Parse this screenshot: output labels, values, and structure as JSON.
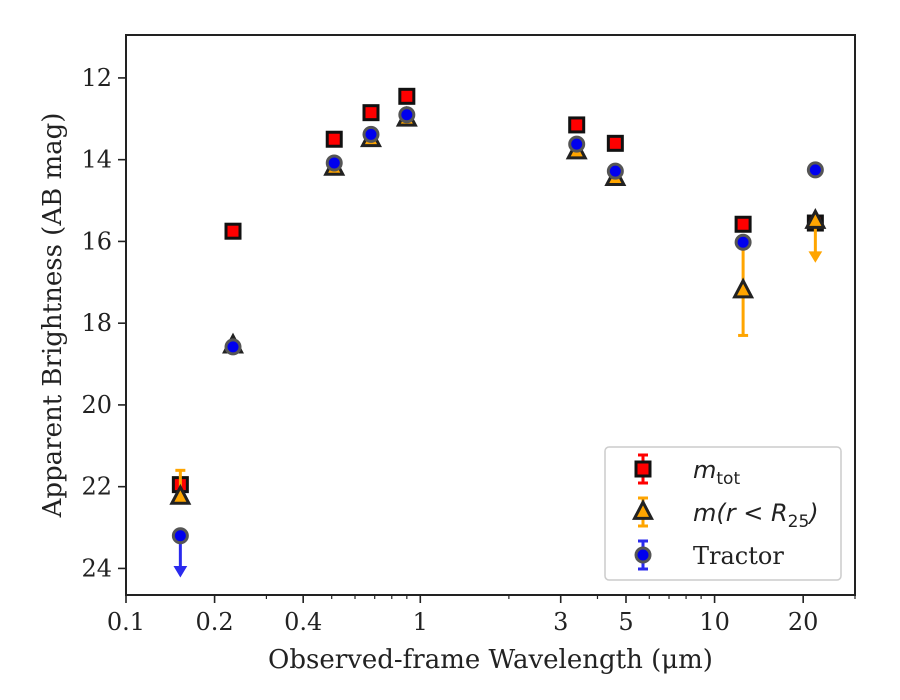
{
  "chart_data": {
    "type": "scatter",
    "title": "",
    "xlabel": "Observed-frame Wavelength (μm)",
    "ylabel": "Apparent Brightness (AB mag)",
    "x_scale": "log",
    "xlim": [
      0.1,
      30
    ],
    "ylim": [
      24.65,
      10.95
    ],
    "y_inverted": true,
    "x_ticks": [
      {
        "value": 0.1,
        "label": "0.1"
      },
      {
        "value": 0.2,
        "label": "0.2"
      },
      {
        "value": 0.4,
        "label": "0.4"
      },
      {
        "value": 1,
        "label": "1"
      },
      {
        "value": 3,
        "label": "3"
      },
      {
        "value": 5,
        "label": "5"
      },
      {
        "value": 10,
        "label": "10"
      },
      {
        "value": 20,
        "label": "20"
      }
    ],
    "y_ticks": [
      {
        "value": 12,
        "label": "12"
      },
      {
        "value": 14,
        "label": "14"
      },
      {
        "value": 16,
        "label": "16"
      },
      {
        "value": 18,
        "label": "18"
      },
      {
        "value": 20,
        "label": "20"
      },
      {
        "value": 22,
        "label": "22"
      },
      {
        "value": 24,
        "label": "24"
      }
    ],
    "legend_position": "lower-right",
    "grid": false,
    "series": [
      {
        "name": "m_tot",
        "legend_main": "m",
        "legend_sub": "tot",
        "legend_rest": "",
        "marker": "square",
        "fill": "#ff0000",
        "edge": "#111111",
        "errcolor": "#ff0000",
        "points": [
          {
            "x": 0.153,
            "y": 21.95,
            "err": 0.12
          },
          {
            "x": 0.231,
            "y": 15.75,
            "err": 0.05
          },
          {
            "x": 0.51,
            "y": 13.5,
            "err": 0.05
          },
          {
            "x": 0.68,
            "y": 12.85,
            "err": 0.05
          },
          {
            "x": 0.9,
            "y": 12.45,
            "err": 0.05
          },
          {
            "x": 3.4,
            "y": 13.15,
            "err": 0.05
          },
          {
            "x": 4.6,
            "y": 13.6,
            "err": 0.05
          },
          {
            "x": 12.5,
            "y": 15.58,
            "err": 0.08
          },
          {
            "x": 22,
            "y": 15.55,
            "err": 0.08
          }
        ]
      },
      {
        "name": "m(r<R25)",
        "legend_main": "m(r < R",
        "legend_sub": "25",
        "legend_rest": ")",
        "marker": "triangle",
        "fill": "#ffa500",
        "edge": "#222222",
        "errcolor": "#ffa500",
        "points": [
          {
            "x": 0.153,
            "y": 22.25,
            "err_low": 0.65,
            "err_high": 0.0
          },
          {
            "x": 0.231,
            "y": 18.55,
            "err": 0.05
          },
          {
            "x": 0.51,
            "y": 14.2,
            "err": 0.05
          },
          {
            "x": 0.68,
            "y": 13.5,
            "err": 0.05
          },
          {
            "x": 0.9,
            "y": 13.0,
            "err": 0.05
          },
          {
            "x": 3.4,
            "y": 13.8,
            "err": 0.05
          },
          {
            "x": 4.6,
            "y": 14.45,
            "err": 0.05
          },
          {
            "x": 12.5,
            "y": 17.2,
            "err": 1.1
          },
          {
            "x": 22,
            "y": 15.5,
            "upper_limit_to": 16.45
          }
        ]
      },
      {
        "name": "Tractor",
        "legend_main": "Tractor",
        "legend_sub": "",
        "legend_rest": "",
        "marker": "circle",
        "fill": "#0000ee",
        "edge": "#555555",
        "errcolor": "#2a2aee",
        "points": [
          {
            "x": 0.153,
            "y": 23.2,
            "upper_limit_to": 24.15
          },
          {
            "x": 0.231,
            "y": 18.58,
            "err": 0.05
          },
          {
            "x": 0.51,
            "y": 14.08,
            "err": 0.05
          },
          {
            "x": 0.68,
            "y": 13.38,
            "err": 0.05
          },
          {
            "x": 0.9,
            "y": 12.9,
            "err": 0.05
          },
          {
            "x": 3.4,
            "y": 13.62,
            "err": 0.05
          },
          {
            "x": 4.6,
            "y": 14.28,
            "err": 0.05
          },
          {
            "x": 12.5,
            "y": 16.02,
            "err": 0.05
          },
          {
            "x": 22,
            "y": 14.25,
            "err": 0.05
          }
        ]
      }
    ]
  }
}
